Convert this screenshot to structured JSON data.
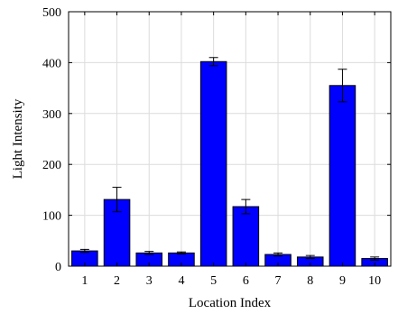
{
  "chart_data": {
    "type": "bar",
    "title": "",
    "xlabel": "Location Index",
    "ylabel": "Light Intensity",
    "categories": [
      "1",
      "2",
      "3",
      "4",
      "5",
      "6",
      "7",
      "8",
      "9",
      "10"
    ],
    "values": [
      30,
      131,
      26,
      26,
      402,
      117,
      23,
      18,
      355,
      15
    ],
    "errors": [
      3,
      24,
      3,
      2,
      8,
      14,
      3,
      3,
      32,
      3
    ],
    "ylim": [
      0,
      500
    ],
    "yticks": [
      "0",
      "100",
      "200",
      "300",
      "400",
      "500"
    ],
    "grid": true,
    "legend": "none",
    "colors": {
      "bar_fill": "#0000FF",
      "bar_edge": "#000000",
      "grid": "#DCDCDC",
      "axis": "#000000",
      "error_bar": "#000000"
    }
  }
}
